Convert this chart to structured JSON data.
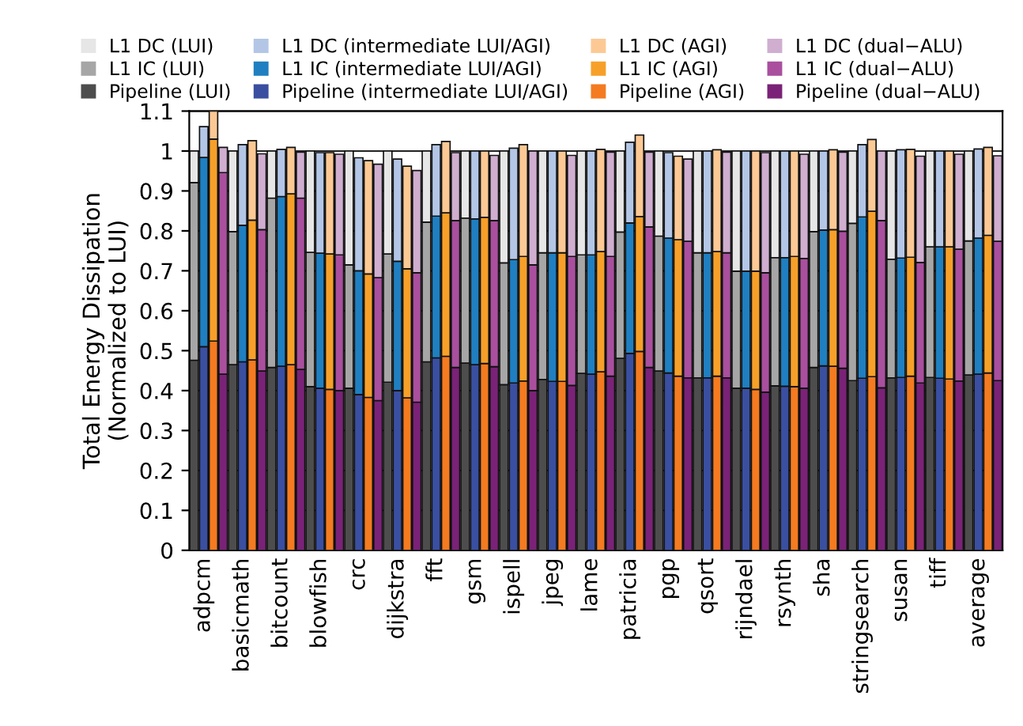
{
  "chart_data": {
    "type": "bar",
    "stacked": true,
    "ylabel": "Total Energy Dissipation\n(Normalized to LUI)",
    "categories": [
      null,
      "adpcm",
      null,
      null,
      null,
      "basicmath",
      null,
      null,
      null,
      "bitcount",
      null,
      null,
      null,
      "blowfish",
      null,
      null,
      null,
      "crc",
      null,
      null,
      null,
      "dijkstra",
      null,
      null,
      null,
      "fft",
      null,
      null,
      null,
      "gsm",
      null,
      null,
      null,
      "ispell",
      null,
      null,
      null,
      "jpeg",
      null,
      null,
      null,
      "lame",
      null,
      null,
      null,
      "patricia",
      null,
      null,
      null,
      "pgp",
      null,
      null,
      null,
      "qsort",
      null,
      null,
      null,
      "rijndael",
      null,
      null,
      null,
      "rsynth",
      null,
      null,
      null,
      "sha",
      null,
      null,
      null,
      "stringsearch",
      null,
      null,
      null,
      "susan",
      null,
      null,
      null,
      "tiff",
      null,
      null,
      null,
      "average",
      null,
      null
    ],
    "ylim": [
      0,
      1.1
    ],
    "yticks": [
      0,
      0.1,
      0.2,
      0.3,
      0.4,
      0.5,
      0.6,
      0.7,
      0.8,
      0.9,
      1,
      1.1
    ],
    "grid": "y",
    "legend": "top",
    "series": [
      {
        "name": "Pipeline (LUI)",
        "color": "#4d4d4d",
        "values": [
          0.476,
          null,
          null,
          null,
          0.465,
          null,
          null,
          null,
          0.458,
          null,
          null,
          null,
          0.41,
          null,
          null,
          null,
          0.406,
          null,
          null,
          null,
          0.421,
          null,
          null,
          null,
          0.472,
          null,
          null,
          null,
          0.469,
          null,
          null,
          null,
          0.415,
          null,
          null,
          null,
          0.428,
          null,
          null,
          null,
          0.443,
          null,
          null,
          null,
          0.481,
          null,
          null,
          null,
          0.449,
          null,
          null,
          null,
          0.432,
          null,
          null,
          null,
          0.406,
          null,
          null,
          null,
          0.412,
          null,
          null,
          null,
          0.458,
          null,
          null,
          null,
          0.425,
          null,
          null,
          null,
          0.432,
          null,
          null,
          null,
          0.433,
          null,
          null,
          null,
          0.439,
          null,
          null,
          null
        ]
      },
      {
        "name": "L1 IC (LUI)",
        "color": "#a6a6a6",
        "values": [
          0.445,
          null,
          null,
          null,
          0.333,
          null,
          null,
          null,
          0.424,
          null,
          null,
          null,
          0.336,
          null,
          null,
          null,
          0.309,
          null,
          null,
          null,
          0.321,
          null,
          null,
          null,
          0.35,
          null,
          null,
          null,
          0.363,
          null,
          null,
          null,
          0.305,
          null,
          null,
          null,
          0.317,
          null,
          null,
          null,
          0.297,
          null,
          null,
          null,
          0.316,
          null,
          null,
          null,
          0.338,
          null,
          null,
          null,
          0.313,
          null,
          null,
          null,
          0.293,
          null,
          null,
          null,
          0.321,
          null,
          null,
          null,
          0.34,
          null,
          null,
          null,
          0.394,
          null,
          null,
          null,
          0.297,
          null,
          null,
          null,
          0.327,
          null,
          null,
          null,
          0.336,
          null,
          null,
          null
        ]
      },
      {
        "name": "L1 DC (LUI)",
        "color": "#e6e6e6",
        "values": [
          0.079,
          null,
          null,
          null,
          0.202,
          null,
          null,
          null,
          0.118,
          null,
          null,
          null,
          0.254,
          null,
          null,
          null,
          0.285,
          null,
          null,
          null,
          0.258,
          null,
          null,
          null,
          0.178,
          null,
          null,
          null,
          0.168,
          null,
          null,
          null,
          0.28,
          null,
          null,
          null,
          0.255,
          null,
          null,
          null,
          0.26,
          null,
          null,
          null,
          0.203,
          null,
          null,
          null,
          0.213,
          null,
          null,
          null,
          0.255,
          null,
          null,
          null,
          0.301,
          null,
          null,
          null,
          0.267,
          null,
          null,
          null,
          0.202,
          null,
          null,
          null,
          0.181,
          null,
          null,
          null,
          0.271,
          null,
          null,
          null,
          0.24,
          null,
          null,
          null,
          0.225,
          null,
          null,
          null
        ]
      },
      {
        "name": "Pipeline (intermediate LUI/AGI)",
        "color": "#3a4fa0",
        "values": [
          null,
          0.51,
          null,
          null,
          null,
          0.472,
          null,
          null,
          null,
          0.461,
          null,
          null,
          null,
          0.406,
          null,
          null,
          null,
          0.39,
          null,
          null,
          null,
          0.4,
          null,
          null,
          null,
          0.482,
          null,
          null,
          null,
          0.465,
          null,
          null,
          null,
          0.419,
          null,
          null,
          null,
          0.423,
          null,
          null,
          null,
          0.441,
          null,
          null,
          null,
          0.493,
          null,
          null,
          null,
          0.444,
          null,
          null,
          null,
          0.432,
          null,
          null,
          null,
          0.406,
          null,
          null,
          null,
          0.411,
          null,
          null,
          null,
          0.462,
          null,
          null,
          null,
          0.431,
          null,
          null,
          null,
          0.433,
          null,
          null,
          null,
          0.431,
          null,
          null,
          null,
          0.441,
          null,
          null
        ]
      },
      {
        "name": "L1 IC (intermediate LUI/AGI)",
        "color": "#1f7fc0",
        "values": [
          null,
          0.474,
          null,
          null,
          null,
          0.342,
          null,
          null,
          null,
          0.425,
          null,
          null,
          null,
          0.338,
          null,
          null,
          null,
          0.31,
          null,
          null,
          null,
          0.324,
          null,
          null,
          null,
          0.355,
          null,
          null,
          null,
          0.365,
          null,
          null,
          null,
          0.309,
          null,
          null,
          null,
          0.322,
          null,
          null,
          null,
          0.299,
          null,
          null,
          null,
          0.327,
          null,
          null,
          null,
          0.338,
          null,
          null,
          null,
          0.313,
          null,
          null,
          null,
          0.293,
          null,
          null,
          null,
          0.322,
          null,
          null,
          null,
          0.34,
          null,
          null,
          null,
          0.404,
          null,
          null,
          null,
          0.299,
          null,
          null,
          null,
          0.329,
          null,
          null,
          null,
          0.341,
          null,
          null
        ]
      },
      {
        "name": "L1 DC (intermediate LUI/AGI)",
        "color": "#b3c6e6",
        "values": [
          null,
          0.077,
          null,
          null,
          null,
          0.202,
          null,
          null,
          null,
          0.118,
          null,
          null,
          null,
          0.252,
          null,
          null,
          null,
          0.283,
          null,
          null,
          null,
          0.256,
          null,
          null,
          null,
          0.179,
          null,
          null,
          null,
          0.17,
          null,
          null,
          null,
          0.279,
          null,
          null,
          null,
          0.255,
          null,
          null,
          null,
          0.26,
          null,
          null,
          null,
          0.202,
          null,
          null,
          null,
          0.214,
          null,
          null,
          null,
          0.255,
          null,
          null,
          null,
          0.301,
          null,
          null,
          null,
          0.267,
          null,
          null,
          null,
          0.198,
          null,
          null,
          null,
          0.181,
          null,
          null,
          null,
          0.271,
          null,
          null,
          null,
          0.24,
          null,
          null,
          null,
          0.223,
          null,
          null
        ]
      },
      {
        "name": "Pipeline (AGI)",
        "color": "#f47b20",
        "values": [
          null,
          null,
          0.524,
          null,
          null,
          null,
          0.477,
          null,
          null,
          null,
          0.465,
          null,
          null,
          null,
          0.403,
          null,
          null,
          null,
          0.383,
          null,
          null,
          null,
          0.382,
          null,
          null,
          null,
          0.486,
          null,
          null,
          null,
          0.468,
          null,
          null,
          null,
          0.424,
          null,
          null,
          null,
          0.423,
          null,
          null,
          null,
          0.447,
          null,
          null,
          null,
          0.498,
          null,
          null,
          null,
          0.436,
          null,
          null,
          null,
          0.436,
          null,
          null,
          null,
          0.403,
          null,
          null,
          null,
          0.41,
          null,
          null,
          null,
          0.461,
          null,
          null,
          null,
          0.435,
          null,
          null,
          null,
          0.436,
          null,
          null,
          null,
          0.429,
          null,
          null,
          null,
          0.444,
          null
        ]
      },
      {
        "name": "L1 IC (AGI)",
        "color": "#f7a029",
        "values": [
          null,
          null,
          0.506,
          null,
          null,
          null,
          0.35,
          null,
          null,
          null,
          0.428,
          null,
          null,
          null,
          0.339,
          null,
          null,
          null,
          0.309,
          null,
          null,
          null,
          0.323,
          null,
          null,
          null,
          0.359,
          null,
          null,
          null,
          0.366,
          null,
          null,
          null,
          0.312,
          null,
          null,
          null,
          0.322,
          null,
          null,
          null,
          0.301,
          null,
          null,
          null,
          0.338,
          null,
          null,
          null,
          0.342,
          null,
          null,
          null,
          0.312,
          null,
          null,
          null,
          0.296,
          null,
          null,
          null,
          0.326,
          null,
          null,
          null,
          0.342,
          null,
          null,
          null,
          0.414,
          null,
          null,
          null,
          0.298,
          null,
          null,
          null,
          0.331,
          null,
          null,
          null,
          0.345,
          null
        ]
      },
      {
        "name": "L1 DC (AGI)",
        "color": "#fcc995",
        "values": [
          null,
          null,
          0.07,
          null,
          null,
          null,
          0.199,
          null,
          null,
          null,
          0.116,
          null,
          null,
          null,
          0.254,
          null,
          null,
          null,
          0.284,
          null,
          null,
          null,
          0.257,
          null,
          null,
          null,
          0.179,
          null,
          null,
          null,
          0.166,
          null,
          null,
          null,
          0.28,
          null,
          null,
          null,
          0.255,
          null,
          null,
          null,
          0.256,
          null,
          null,
          null,
          0.204,
          null,
          null,
          null,
          0.209,
          null,
          null,
          null,
          0.255,
          null,
          null,
          null,
          0.301,
          null,
          null,
          null,
          0.264,
          null,
          null,
          null,
          0.2,
          null,
          null,
          null,
          0.18,
          null,
          null,
          null,
          0.27,
          null,
          null,
          null,
          0.24,
          null,
          null,
          null,
          0.22,
          null
        ]
      },
      {
        "name": "Pipeline (dual−ALU)",
        "color": "#7a2277",
        "values": [
          null,
          null,
          null,
          0.441,
          null,
          null,
          null,
          0.449,
          null,
          null,
          null,
          0.453,
          null,
          null,
          null,
          0.4,
          null,
          null,
          null,
          0.375,
          null,
          null,
          null,
          0.371,
          null,
          null,
          null,
          0.458,
          null,
          null,
          null,
          0.46,
          null,
          null,
          null,
          0.4,
          null,
          null,
          null,
          0.413,
          null,
          null,
          null,
          0.436,
          null,
          null,
          null,
          0.458,
          null,
          null,
          null,
          0.432,
          null,
          null,
          null,
          0.432,
          null,
          null,
          null,
          0.396,
          null,
          null,
          null,
          0.406,
          null,
          null,
          null,
          0.456,
          null,
          null,
          null,
          0.407,
          null,
          null,
          null,
          0.419,
          null,
          null,
          null,
          0.424,
          null,
          null,
          null,
          0.425
        ]
      },
      {
        "name": "L1 IC (dual−ALU)",
        "color": "#a94f9e",
        "values": [
          null,
          null,
          null,
          0.505,
          null,
          null,
          null,
          0.354,
          null,
          null,
          null,
          0.429,
          null,
          null,
          null,
          0.34,
          null,
          null,
          null,
          0.308,
          null,
          null,
          null,
          0.324,
          null,
          null,
          null,
          0.368,
          null,
          null,
          null,
          0.366,
          null,
          null,
          null,
          0.315,
          null,
          null,
          null,
          0.323,
          null,
          null,
          null,
          0.3,
          null,
          null,
          null,
          0.352,
          null,
          null,
          null,
          0.342,
          null,
          null,
          null,
          0.313,
          null,
          null,
          null,
          0.299,
          null,
          null,
          null,
          0.325,
          null,
          null,
          null,
          0.343,
          null,
          null,
          null,
          0.419,
          null,
          null,
          null,
          0.302,
          null,
          null,
          null,
          0.33,
          null,
          null,
          null,
          0.349
        ]
      },
      {
        "name": "L1 DC (dual−ALU)",
        "color": "#cfaed0",
        "values": [
          null,
          null,
          null,
          0.063,
          null,
          null,
          null,
          0.19,
          null,
          null,
          null,
          0.115,
          null,
          null,
          null,
          0.252,
          null,
          null,
          null,
          0.284,
          null,
          null,
          null,
          0.256,
          null,
          null,
          null,
          0.17,
          null,
          null,
          null,
          0.163,
          null,
          null,
          null,
          0.285,
          null,
          null,
          null,
          0.253,
          null,
          null,
          null,
          0.261,
          null,
          null,
          null,
          0.187,
          null,
          null,
          null,
          0.206,
          null,
          null,
          null,
          0.252,
          null,
          null,
          null,
          0.301,
          null,
          null,
          null,
          0.261,
          null,
          null,
          null,
          0.198,
          null,
          null,
          null,
          0.174,
          null,
          null,
          null,
          0.266,
          null,
          null,
          null,
          0.238,
          null,
          null,
          null,
          0.214
        ]
      }
    ]
  }
}
